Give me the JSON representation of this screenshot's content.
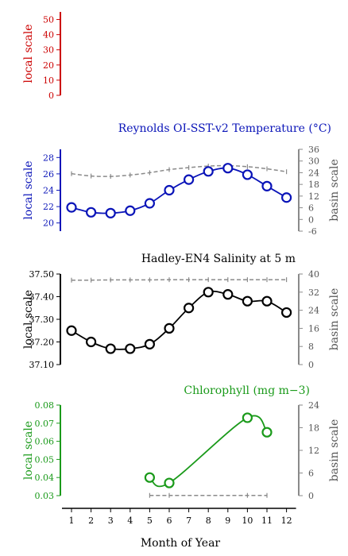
{
  "chart_data": [
    {
      "type": "line",
      "title": "",
      "ylabel_left": "local scale",
      "color": "#cc0000",
      "ylim_left": [
        0,
        55
      ],
      "yticks_left": [
        "0",
        "10",
        "20",
        "30",
        "40",
        "50"
      ],
      "series": []
    },
    {
      "type": "line",
      "title": "Reynolds OI-SST-v2 Temperature (°C)",
      "ylabel_left": "local scale",
      "ylabel_right": "basin scale",
      "color": "#0a14b8",
      "ylim_left": [
        19,
        29
      ],
      "yticks_left": [
        "20",
        "22",
        "24",
        "26",
        "28"
      ],
      "ylim_right": [
        -6,
        36
      ],
      "yticks_right": [
        "-6",
        "0",
        "6",
        "12",
        "18",
        "24",
        "30",
        "36"
      ],
      "x": [
        1,
        2,
        3,
        4,
        5,
        6,
        7,
        8,
        9,
        10,
        11,
        12
      ],
      "local": [
        21.9,
        21.3,
        21.2,
        21.5,
        22.4,
        24.0,
        25.3,
        26.3,
        26.7,
        25.9,
        24.5,
        23.1
      ],
      "basin": [
        23.5,
        22.3,
        22.1,
        22.8,
        24.0,
        25.6,
        26.6,
        27.4,
        27.6,
        27.1,
        26.0,
        24.5
      ]
    },
    {
      "type": "line",
      "title": "Hadley-EN4 Salinity at 5 m",
      "ylabel_left": "local scale",
      "ylabel_right": "basin scale",
      "color": "#000000",
      "ylim_left": [
        37.1,
        37.5
      ],
      "yticks_left": [
        "37.10",
        "37.20",
        "37.30",
        "37.40",
        "37.50"
      ],
      "ylim_right": [
        0,
        40
      ],
      "yticks_right": [
        "0",
        "8",
        "16",
        "24",
        "32",
        "40"
      ],
      "x": [
        1,
        2,
        3,
        4,
        5,
        6,
        7,
        8,
        9,
        10,
        11,
        12
      ],
      "local": [
        37.25,
        37.2,
        37.17,
        37.17,
        37.19,
        37.26,
        37.35,
        37.42,
        37.41,
        37.38,
        37.38,
        37.33
      ],
      "basin": [
        37.3,
        37.3,
        37.4,
        37.4,
        37.4,
        37.5,
        37.5,
        37.5,
        37.5,
        37.5,
        37.5,
        37.5
      ]
    },
    {
      "type": "line",
      "title": "Chlorophyll (mg m−3)",
      "ylabel_left": "local scale",
      "ylabel_right": "basin scale",
      "color": "#1a9a1a",
      "ylim_left": [
        0.03,
        0.08
      ],
      "yticks_left": [
        "0.03",
        "0.04",
        "0.05",
        "0.06",
        "0.07",
        "0.08"
      ],
      "ylim_right": [
        0,
        24
      ],
      "yticks_right": [
        "0",
        "6",
        "12",
        "18",
        "24"
      ],
      "x": [
        5,
        6,
        10,
        11
      ],
      "local": [
        0.04,
        0.037,
        0.073,
        0.065
      ],
      "basin": [
        0.06,
        0.06,
        0.06,
        0.06
      ]
    }
  ],
  "xaxis": {
    "label": "Month of Year",
    "ticks": [
      "1",
      "2",
      "3",
      "4",
      "5",
      "6",
      "7",
      "8",
      "9",
      "10",
      "11",
      "12"
    ]
  }
}
